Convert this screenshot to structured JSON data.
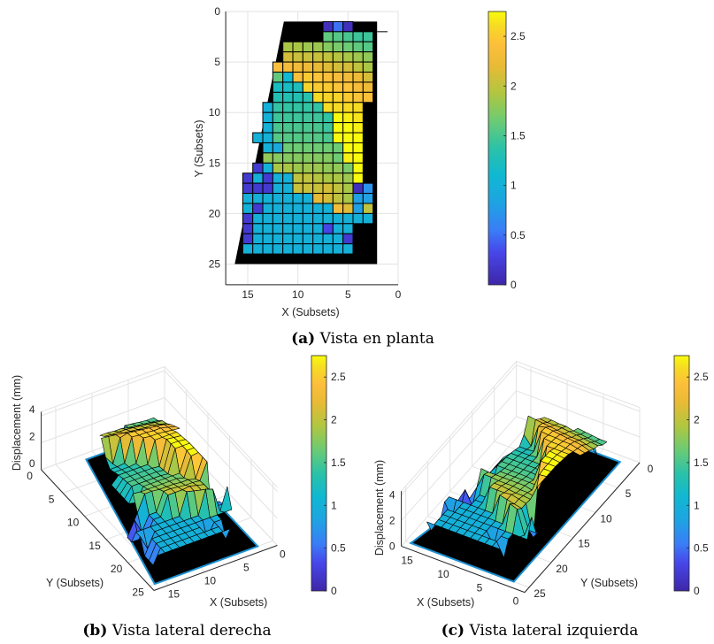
{
  "captions": [
    {
      "label": "(a)",
      "text": "Vista en planta"
    },
    {
      "label": "(b)",
      "text": "Vista lateral derecha"
    },
    {
      "label": "(c)",
      "text": "Vista lateral izquierda"
    }
  ],
  "colors": {
    "background_mask": "#000000",
    "floor_edge": "#1a8fd0",
    "grid": "#e3e3e3",
    "colormap": "parula"
  },
  "chart_data": [
    {
      "type": "heatmap",
      "view": "top",
      "xlabel": "X (Subsets)",
      "ylabel": "Y (Subsets)",
      "xticks": [
        15,
        10,
        5,
        0
      ],
      "yticks": [
        0,
        5,
        10,
        15,
        20,
        25
      ],
      "xlim": [
        17,
        0
      ],
      "ylim": [
        0,
        27
      ],
      "grid": true,
      "colorbar": {
        "ticks": [
          0,
          0.5,
          1,
          1.5,
          2,
          2.5
        ],
        "clim": [
          0,
          2.75
        ],
        "placement": "right"
      },
      "x": [
        15,
        14,
        13,
        12,
        11,
        10,
        9,
        8,
        7,
        6,
        5,
        4,
        3
      ],
      "y": [
        1.5,
        2.5,
        3.5,
        4.5,
        5.5,
        6.5,
        7.5,
        8.5,
        9.5,
        10.5,
        11.5,
        12.5,
        13.5,
        14.5,
        15.5,
        16.5,
        17.5,
        18.5,
        19.5,
        20.5,
        21.5,
        22.5,
        23.5
      ],
      "z": [
        [
          null,
          null,
          null,
          null,
          null,
          null,
          null,
          null,
          0.1,
          0.5,
          0.1,
          null,
          null
        ],
        [
          null,
          null,
          null,
          null,
          null,
          null,
          null,
          null,
          1.6,
          1.55,
          1.5,
          1.45,
          1.45
        ],
        [
          null,
          null,
          null,
          null,
          1.9,
          1.9,
          1.85,
          1.85,
          1.75,
          1.7,
          1.65,
          1.6,
          1.55
        ],
        [
          null,
          null,
          null,
          null,
          2.1,
          2.05,
          2.05,
          2.05,
          2.0,
          1.95,
          1.9,
          1.85,
          1.8
        ],
        [
          null,
          null,
          null,
          2.4,
          2.35,
          2.3,
          2.25,
          2.2,
          2.15,
          2.1,
          2.1,
          2.0,
          1.9
        ],
        [
          null,
          null,
          null,
          1.6,
          1.1,
          2.4,
          2.5,
          2.45,
          2.4,
          2.35,
          2.3,
          2.25,
          2.1
        ],
        [
          null,
          null,
          null,
          1.2,
          1.2,
          1.25,
          2.55,
          2.5,
          2.5,
          2.45,
          2.45,
          2.35,
          2.25
        ],
        [
          null,
          null,
          null,
          1.3,
          1.3,
          1.3,
          1.35,
          2.6,
          2.55,
          2.55,
          2.5,
          2.45,
          2.4
        ],
        [
          null,
          null,
          1.0,
          1.4,
          1.4,
          1.4,
          1.4,
          1.4,
          2.6,
          2.6,
          2.6,
          2.6,
          null
        ],
        [
          null,
          null,
          1.0,
          1.45,
          1.45,
          1.45,
          1.45,
          1.45,
          1.4,
          2.75,
          2.7,
          2.65,
          null
        ],
        [
          null,
          null,
          1.0,
          1.5,
          1.5,
          1.5,
          1.5,
          1.5,
          1.45,
          2.75,
          2.75,
          2.7,
          null
        ],
        [
          null,
          1.0,
          1.0,
          1.55,
          1.55,
          1.55,
          1.55,
          1.55,
          1.5,
          2.75,
          2.75,
          2.75,
          null
        ],
        [
          null,
          null,
          1.0,
          0.9,
          1.65,
          1.65,
          1.65,
          1.65,
          1.65,
          1.65,
          2.75,
          2.75,
          null
        ],
        [
          null,
          null,
          1.8,
          1.75,
          1.75,
          1.75,
          1.75,
          1.75,
          1.75,
          1.65,
          2.7,
          2.75,
          null
        ],
        [
          null,
          0.2,
          1.0,
          1.9,
          1.9,
          1.85,
          1.85,
          1.85,
          1.8,
          1.8,
          1.7,
          2.75,
          null
        ],
        [
          0.2,
          1.0,
          0.2,
          1.0,
          1.0,
          2.0,
          2.0,
          1.95,
          1.9,
          1.9,
          1.85,
          2.75,
          null
        ],
        [
          0.2,
          0.2,
          0.2,
          1.0,
          1.0,
          2.05,
          2.05,
          2.05,
          2.1,
          2.0,
          1.9,
          0.1,
          0.7
        ],
        [
          1.0,
          1.0,
          1.0,
          1.0,
          1.0,
          1.0,
          1.0,
          2.2,
          2.1,
          2.0,
          1.9,
          0.8,
          0.8
        ],
        [
          1.0,
          0.2,
          1.0,
          1.0,
          1.0,
          1.0,
          1.0,
          1.0,
          1.0,
          2.3,
          2.15,
          0.8,
          2.0
        ],
        [
          0.2,
          1.0,
          1.0,
          1.0,
          1.0,
          1.0,
          1.0,
          1.0,
          1.0,
          1.0,
          1.0,
          1.0,
          1.0
        ],
        [
          0.2,
          1.0,
          1.0,
          1.0,
          1.0,
          1.0,
          1.0,
          1.0,
          0.3,
          1.0,
          1.0,
          null,
          null
        ],
        [
          0.2,
          1.0,
          1.0,
          1.0,
          1.0,
          1.0,
          1.0,
          1.0,
          1.0,
          1.0,
          0.2,
          null,
          null
        ],
        [
          1.0,
          1.0,
          1.0,
          1.0,
          1.0,
          1.0,
          1.0,
          1.0,
          1.0,
          1.0,
          1.0,
          null,
          null
        ]
      ]
    },
    {
      "type": "surface",
      "view": "right-side",
      "xlabel": "X (Subsets)",
      "ylabel": "Y (Subsets)",
      "zlabel": "Displacement (mm)",
      "xticks": [
        15,
        10,
        5,
        0
      ],
      "yticks": [
        0,
        5,
        10,
        15,
        20,
        25
      ],
      "zticks": [
        0,
        2,
        4
      ],
      "xlim": [
        0,
        17
      ],
      "ylim": [
        0,
        26
      ],
      "zlim": [
        0,
        4.3
      ],
      "grid": true,
      "colorbar": {
        "ticks": [
          0,
          0.5,
          1,
          1.5,
          2,
          2.5
        ],
        "clim": [
          0,
          2.75
        ],
        "placement": "right"
      }
    },
    {
      "type": "surface",
      "view": "left-side",
      "xlabel": "X (Subsets)",
      "ylabel": "Y (Subsets)",
      "zlabel": "Displacement (mm)",
      "xticks": [
        15,
        10,
        5,
        0
      ],
      "yticks": [
        0,
        5,
        10,
        15,
        20,
        25
      ],
      "zticks": [
        0,
        2,
        4
      ],
      "xlim": [
        0,
        17
      ],
      "ylim": [
        0,
        26
      ],
      "zlim": [
        0,
        4.3
      ],
      "grid": true,
      "colorbar": {
        "ticks": [
          0,
          0.5,
          1,
          1.5,
          2,
          2.5
        ],
        "clim": [
          0,
          2.75
        ],
        "placement": "right"
      }
    }
  ]
}
